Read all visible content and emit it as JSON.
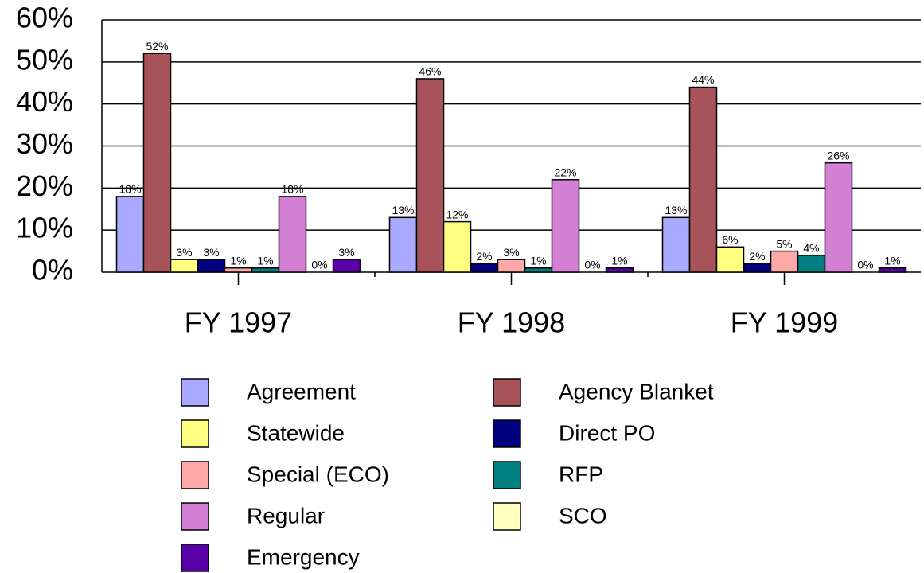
{
  "chart_data": {
    "type": "bar",
    "categories": [
      "FY 1997",
      "FY 1998",
      "FY 1999"
    ],
    "series": [
      {
        "name": "Agreement",
        "color": "#a9a9ff",
        "values": [
          18,
          13,
          13
        ],
        "value_labels": [
          "18%",
          "13%",
          "13%"
        ]
      },
      {
        "name": "Agency Blanket",
        "color": "#a8525a",
        "values": [
          52,
          46,
          44
        ],
        "value_labels": [
          "52%",
          "46%",
          "44%"
        ]
      },
      {
        "name": "Statewide",
        "color": "#ffff80",
        "values": [
          3,
          12,
          6
        ],
        "value_labels": [
          "3%",
          "12%",
          "6%"
        ]
      },
      {
        "name": "Direct PO",
        "color": "#000080",
        "values": [
          3,
          2,
          2
        ],
        "value_labels": [
          "3%",
          "2%",
          "2%"
        ]
      },
      {
        "name": "Special (ECO)",
        "color": "#ffa8a8",
        "values": [
          1,
          3,
          5
        ],
        "value_labels": [
          "1%",
          "3%",
          "5%"
        ]
      },
      {
        "name": "RFP",
        "color": "#008080",
        "values": [
          1,
          1,
          4
        ],
        "value_labels": [
          "1%",
          "1%",
          "4%"
        ]
      },
      {
        "name": "Regular",
        "color": "#d37fd3",
        "values": [
          18,
          22,
          26
        ],
        "value_labels": [
          "18%",
          "22%",
          "26%"
        ]
      },
      {
        "name": "SCO",
        "color": "#ffffc0",
        "values": [
          0,
          0,
          0
        ],
        "value_labels": [
          "0%",
          "0%",
          "0%"
        ]
      },
      {
        "name": "Emergency",
        "color": "#5a00a8",
        "values": [
          3,
          1,
          1
        ],
        "value_labels": [
          "3%",
          "1%",
          "1%"
        ]
      }
    ],
    "ylim": [
      0,
      60
    ],
    "yticks": [
      {
        "value": 0,
        "label": "0%"
      },
      {
        "value": 10,
        "label": "10%"
      },
      {
        "value": 20,
        "label": "20%"
      },
      {
        "value": 30,
        "label": "30%"
      },
      {
        "value": 40,
        "label": "40%"
      },
      {
        "value": 50,
        "label": "50%"
      },
      {
        "value": 60,
        "label": "60%"
      }
    ],
    "grid": true
  }
}
